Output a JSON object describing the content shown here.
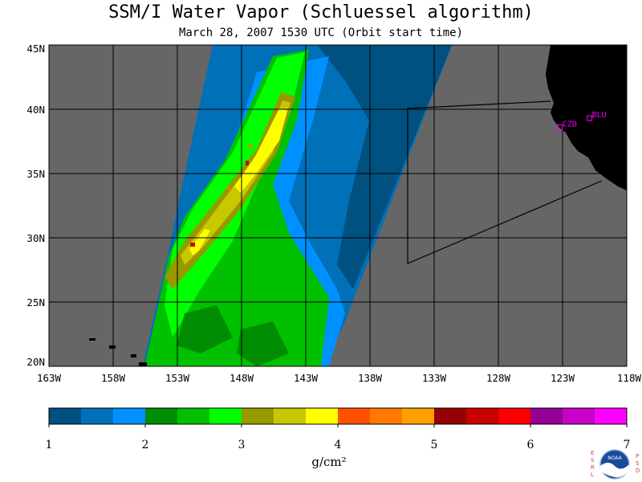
{
  "title": "SSM/I Water Vapor (Schluessel algorithm)",
  "subtitle": "March 28, 2007  1530 UTC  (Orbit start time)",
  "map": {
    "lat_labels": [
      "45N",
      "40N",
      "35N",
      "30N",
      "25N",
      "20N"
    ],
    "lon_labels": [
      "163W",
      "158W",
      "153W",
      "148W",
      "143W",
      "138W",
      "133W",
      "128W",
      "123W",
      "118W"
    ],
    "extent": {
      "lon_min": -163,
      "lon_max": -118,
      "lat_min": 20,
      "lat_max": 45
    },
    "stations": [
      {
        "id": "CZD",
        "lon": -123.2,
        "lat": 38.6
      },
      {
        "id": "BLU",
        "lon": -120.9,
        "lat": 39.3
      }
    ],
    "colors": {
      "background_gray": "#666666",
      "land": "#000000",
      "grid": "#000000",
      "station": "#ff00ff"
    }
  },
  "colorbar": {
    "unit_label": "g/cm²",
    "tick_labels": [
      "1",
      "2",
      "3",
      "4",
      "5",
      "6",
      "7"
    ],
    "colors": [
      "#005080",
      "#0070b8",
      "#0090ff",
      "#008c00",
      "#00c000",
      "#00ff00",
      "#989800",
      "#c8c800",
      "#ffff00",
      "#ff5000",
      "#ff7800",
      "#ffa000",
      "#960000",
      "#c80000",
      "#ff0000",
      "#960096",
      "#c800c8",
      "#ff00ff"
    ]
  },
  "logo": {
    "left_letters": "ESRL",
    "right_letters": "PSD",
    "center_text": "NOAA"
  }
}
